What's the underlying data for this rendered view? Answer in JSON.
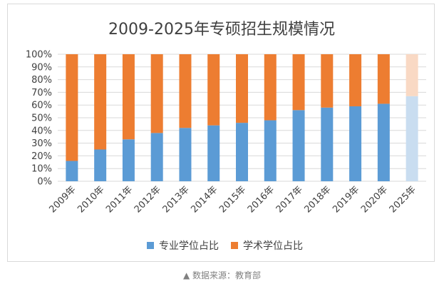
{
  "colors": {
    "professional": "#5B9BD5",
    "academic": "#ED7D31",
    "professional_projected": "#C9DDF0",
    "academic_projected": "#F9D9C4",
    "grid": "#D9D9D9",
    "text": "#404040"
  },
  "chart_data": {
    "type": "bar",
    "stacked": true,
    "percent": true,
    "title": "2009-2025年专硕招生规模情况",
    "xlabel": "",
    "ylabel": "",
    "ylim": [
      0,
      100
    ],
    "yticks": [
      "0%",
      "10%",
      "20%",
      "30%",
      "40%",
      "50%",
      "60%",
      "70%",
      "80%",
      "90%",
      "100%"
    ],
    "grid": true,
    "legend_position": "bottom",
    "categories": [
      "2009年",
      "2010年",
      "2011年",
      "2012年",
      "2013年",
      "2014年",
      "2015年",
      "2016年",
      "2017年",
      "2018年",
      "2019年",
      "2020年",
      "2025年"
    ],
    "projected_categories": [
      "2025年"
    ],
    "series": [
      {
        "name": "专业学位占比",
        "values": [
          16,
          25,
          33,
          38,
          42,
          44,
          46,
          48,
          56,
          58,
          59,
          61,
          67
        ]
      },
      {
        "name": "学术学位占比",
        "values": [
          84,
          75,
          67,
          62,
          58,
          56,
          54,
          52,
          44,
          42,
          41,
          39,
          33
        ]
      }
    ]
  },
  "source": {
    "icon": "triangle-up-icon",
    "text": "▲ 数据来源：教育部"
  }
}
